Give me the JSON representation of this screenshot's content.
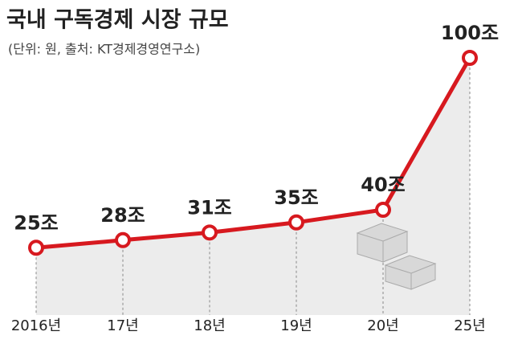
{
  "chart_data": {
    "type": "line",
    "title": "국내 구독경제 시장 규모",
    "subtitle": "(단위: 원, 출처: KT경제경영연구소)",
    "categories": [
      "2016년",
      "17년",
      "18년",
      "19년",
      "20년",
      "25년"
    ],
    "values": [
      25,
      28,
      31,
      35,
      40,
      100
    ],
    "value_labels": [
      "25조",
      "28조",
      "31조",
      "35조",
      "40조",
      "100조"
    ],
    "color": "#d7191f",
    "ylim": [
      0,
      100
    ]
  }
}
